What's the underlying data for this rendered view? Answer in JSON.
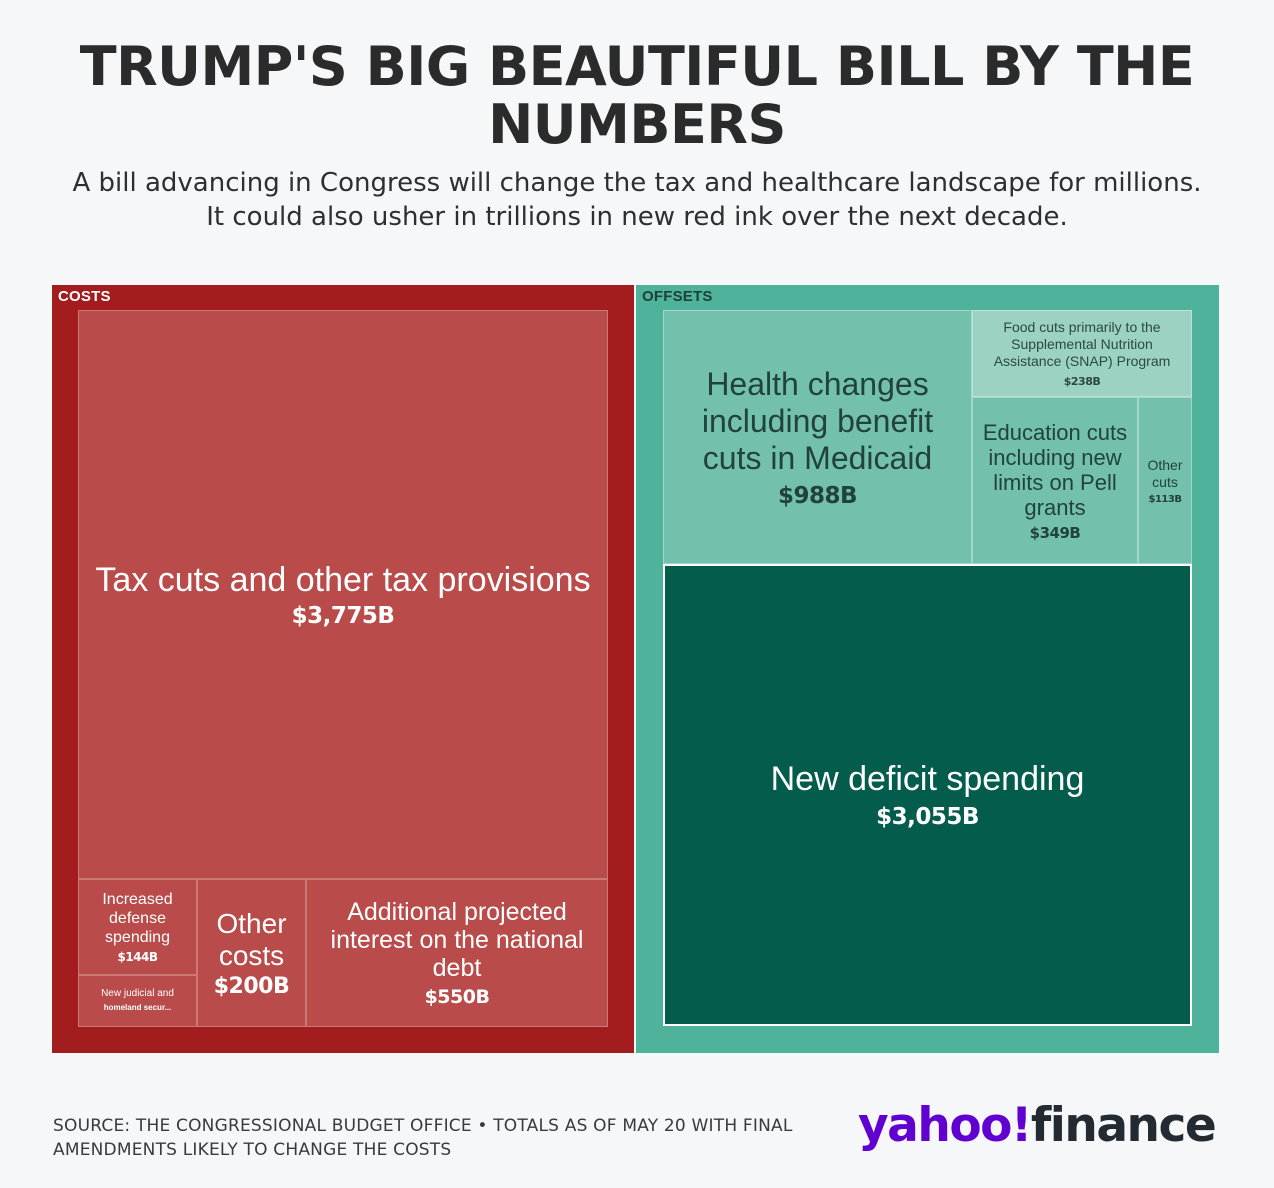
{
  "title": "TRUMP'S BIG BEAUTIFUL BILL BY THE NUMBERS",
  "subtitle": "A bill advancing in Congress will change the tax and healthcare landscape for millions. It could also usher in trillions in new red ink over the next decade.",
  "source": "SOURCE: THE CONGRESSIONAL BUDGET OFFICE • TOTALS AS OF MAY 20 WITH FINAL AMENDMENTS LIKELY TO CHANGE THE COSTS",
  "logo": {
    "yahoo": "yahoo!",
    "finance": "finance"
  },
  "colors": {
    "costs_frame": "#a31c1e",
    "costs_cell": "#b94c4a",
    "offsets_frame": "#4fb29b",
    "offsets_cell": "#73c0ad",
    "offsets_light": "#9bd2c3",
    "deficit": "#045c4c"
  },
  "chart_data": {
    "type": "treemap",
    "unit": "$B",
    "groups": [
      {
        "name": "COSTS",
        "items": [
          {
            "label": "Tax cuts and other tax provisions",
            "value": 3775,
            "value_label": "$3,775B"
          },
          {
            "label": "Additional projected interest on the national debt",
            "value": 550,
            "value_label": "$550B"
          },
          {
            "label": "Other costs",
            "value": 200,
            "value_label": "$200B"
          },
          {
            "label": "Increased defense spending",
            "value": 144,
            "value_label": "$144B"
          },
          {
            "label": "New judicial and homeland secur...",
            "value_label": ""
          }
        ]
      },
      {
        "name": "OFFSETS",
        "items": [
          {
            "label": "New deficit spending",
            "value": 3055,
            "value_label": "$3,055B"
          },
          {
            "label": "Health changes including benefit cuts in Medicaid",
            "value": 988,
            "value_label": "$988B"
          },
          {
            "label": "Education cuts including new limits on Pell grants",
            "value": 349,
            "value_label": "$349B"
          },
          {
            "label": "Food cuts primarily to the Supplemental Nutrition Assistance (SNAP) Program",
            "value": 238,
            "value_label": "$238B"
          },
          {
            "label": "Other cuts",
            "value": 113,
            "value_label": "$113B"
          }
        ]
      }
    ]
  }
}
